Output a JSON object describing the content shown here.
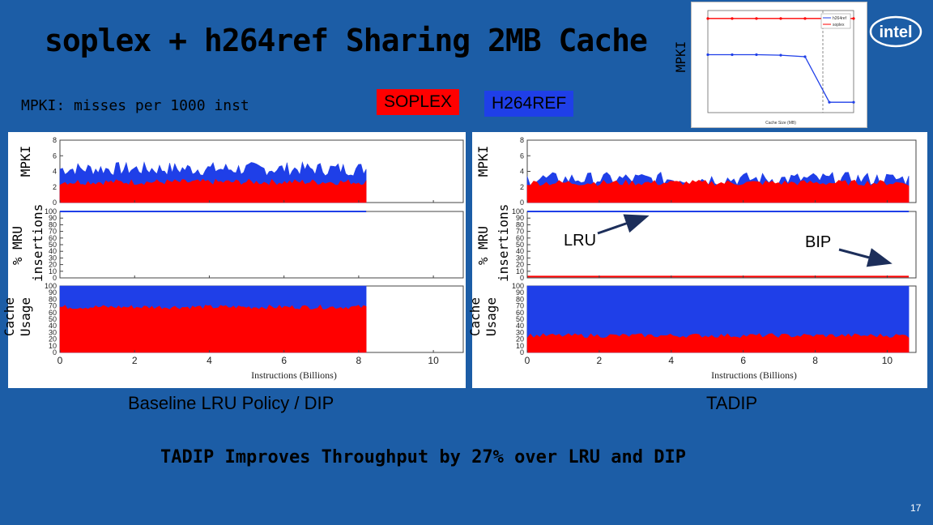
{
  "slide": {
    "title": "soplex + h264ref Sharing 2MB Cache",
    "mpki_definition": "MPKI: misses per 1000 inst",
    "tag_soplex": "SOPLEX",
    "tag_h264": "H264REF",
    "caption_left": "Baseline LRU Policy / DIP",
    "caption_right": "TADIP",
    "conclusion": "TADIP Improves Throughput by 27% over LRU and DIP",
    "page_number": "17",
    "logo_text": "intel",
    "inset_axis_label": "MPKI",
    "annotation_lru": "LRU",
    "annotation_bip": "BIP"
  },
  "y_labels": {
    "mpki": "MPKI",
    "mru_line1": "% MRU",
    "mru_line2": "insertions",
    "cache_line1": "Cache",
    "cache_line2": "Usage"
  },
  "colors": {
    "background": "#1c5da6",
    "soplex": "#ff0000",
    "h264ref": "#1f3fe8"
  },
  "chart_data": [
    {
      "type": "area",
      "panel": "left",
      "xlabel": "Instructions (Billions)",
      "xlim": [
        0,
        10.8
      ],
      "x_ticks": [
        0,
        2,
        4,
        6,
        8,
        10
      ],
      "subplots": [
        {
          "ylabel": "MPKI",
          "ylim": [
            0,
            8
          ],
          "y_ticks": [
            0,
            2,
            4,
            6,
            8
          ],
          "series": [
            {
              "name": "soplex",
              "x": [
                0,
                8.2
              ],
              "values": [
                2.6,
                2.6
              ]
            },
            {
              "name": "h264ref",
              "x": [
                0,
                8.2
              ],
              "values": [
                4.3,
                4.3
              ]
            }
          ]
        },
        {
          "ylabel": "% MRU insertions",
          "ylim": [
            0,
            100
          ],
          "y_ticks": [
            0,
            10,
            20,
            30,
            40,
            50,
            60,
            70,
            80,
            90,
            100
          ],
          "series": [
            {
              "name": "soplex",
              "x": [
                0,
                8.2
              ],
              "values": [
                100,
                100
              ]
            },
            {
              "name": "h264ref",
              "x": [
                0,
                8.2
              ],
              "values": [
                100,
                100
              ]
            }
          ]
        },
        {
          "ylabel": "Cache Usage",
          "ylim": [
            0,
            100
          ],
          "y_ticks": [
            0,
            10,
            20,
            30,
            40,
            50,
            60,
            70,
            80,
            90,
            100
          ],
          "series": [
            {
              "name": "soplex",
              "x": [
                0,
                8.2
              ],
              "values": [
                68,
                68
              ]
            },
            {
              "name": "h264ref",
              "x": [
                0,
                8.2
              ],
              "values": [
                100,
                100
              ]
            }
          ]
        }
      ]
    },
    {
      "type": "area",
      "panel": "right",
      "xlabel": "Instructions (Billions)",
      "xlim": [
        0,
        10.8
      ],
      "x_ticks": [
        0,
        2,
        4,
        6,
        8,
        10
      ],
      "subplots": [
        {
          "ylabel": "MPKI",
          "ylim": [
            0,
            8
          ],
          "y_ticks": [
            0,
            2,
            4,
            6,
            8
          ],
          "series": [
            {
              "name": "soplex",
              "x": [
                0,
                10.6
              ],
              "values": [
                2.5,
                2.5
              ]
            },
            {
              "name": "h264ref",
              "x": [
                0,
                10.6
              ],
              "values": [
                3.0,
                3.0
              ]
            }
          ]
        },
        {
          "ylabel": "% MRU insertions",
          "ylim": [
            0,
            100
          ],
          "y_ticks": [
            0,
            10,
            20,
            30,
            40,
            50,
            60,
            70,
            80,
            90,
            100
          ],
          "series": [
            {
              "name": "h264ref",
              "x": [
                0,
                10.6
              ],
              "values": [
                100,
                100
              ]
            },
            {
              "name": "soplex",
              "x": [
                0,
                10.6
              ],
              "values": [
                2,
                2
              ]
            }
          ]
        },
        {
          "ylabel": "Cache Usage",
          "ylim": [
            0,
            100
          ],
          "y_ticks": [
            0,
            10,
            20,
            30,
            40,
            50,
            60,
            70,
            80,
            90,
            100
          ],
          "series": [
            {
              "name": "soplex",
              "x": [
                0,
                10.6
              ],
              "values": [
                25,
                25
              ]
            },
            {
              "name": "h264ref",
              "x": [
                0,
                10.6
              ],
              "values": [
                100,
                100
              ]
            }
          ]
        }
      ]
    },
    {
      "type": "line",
      "panel": "inset",
      "xlabel": "Cache Size (MB)",
      "ylabel": "MPKI",
      "yscale": "log",
      "series": [
        {
          "name": "h264ref",
          "x": [
            0.0625,
            0.125,
            0.25,
            0.5,
            1,
            2,
            4
          ],
          "values": [
            1.5,
            1.5,
            1.5,
            1.45,
            1.3,
            0.05,
            0.05
          ]
        },
        {
          "name": "soplex",
          "x": [
            0.0625,
            0.125,
            0.25,
            0.5,
            1,
            2,
            4
          ],
          "values": [
            20,
            20,
            20,
            20,
            20,
            20,
            20
          ]
        }
      ]
    }
  ]
}
